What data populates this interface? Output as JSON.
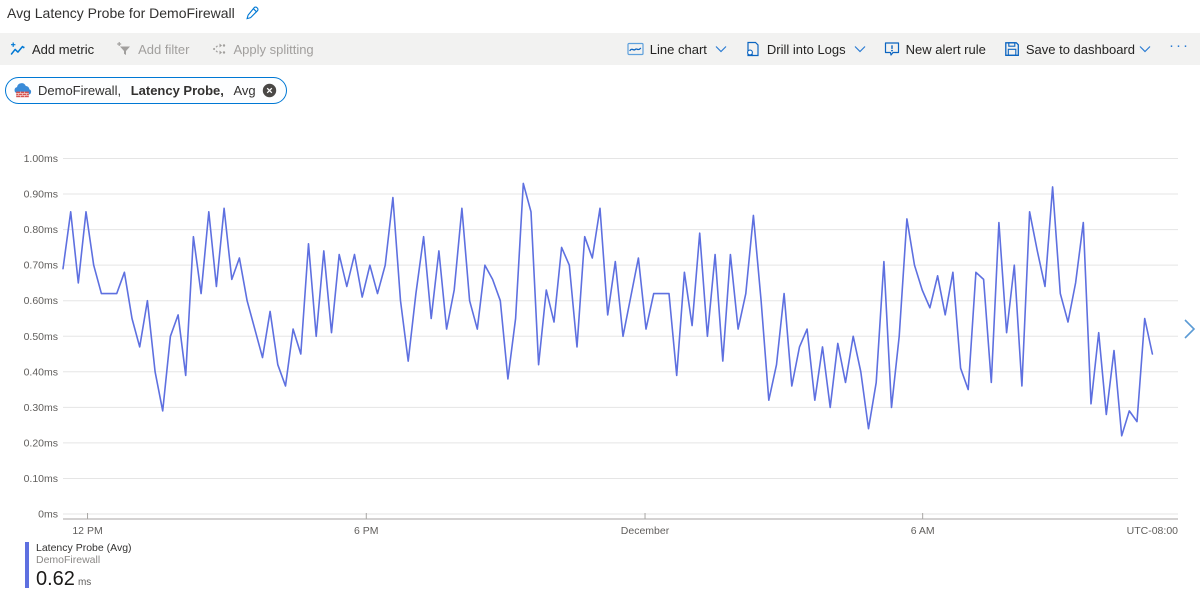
{
  "header": {
    "title": "Avg Latency Probe for DemoFirewall"
  },
  "toolbar": {
    "left": [
      {
        "label": "Add metric",
        "icon": "add-metric-icon",
        "enabled": true
      },
      {
        "label": "Add filter",
        "icon": "add-filter-icon",
        "enabled": false
      },
      {
        "label": "Apply splitting",
        "icon": "apply-splitting-icon",
        "enabled": false
      }
    ],
    "right": [
      {
        "label": "Line chart",
        "icon": "line-chart-icon",
        "has_dropdown": true
      },
      {
        "label": "Drill into Logs",
        "icon": "drill-into-logs-icon",
        "has_dropdown": true
      },
      {
        "label": "New alert rule",
        "icon": "new-alert-rule-icon",
        "has_dropdown": false
      },
      {
        "label": "Save to dashboard",
        "icon": "save-icon",
        "has_dropdown": true
      }
    ],
    "more_label": "···"
  },
  "metric_pill": {
    "resource": "DemoFirewall, ",
    "metric": "Latency Probe, ",
    "aggregation": "Avg",
    "icon": "firewall-icon",
    "close_icon": "close-icon"
  },
  "chart_data": {
    "type": "line",
    "title": "Avg Latency Probe for DemoFirewall",
    "xlabel": "",
    "ylabel": "ms",
    "ylim": [
      0,
      1.0
    ],
    "grid": true,
    "legend_position": "bottom-left",
    "y_ticks": [
      "1.00ms",
      "0.90ms",
      "0.80ms",
      "0.70ms",
      "0.60ms",
      "0.50ms",
      "0.40ms",
      "0.30ms",
      "0.20ms",
      "0.10ms",
      "0ms"
    ],
    "x_ticks": [
      {
        "label": "12 PM",
        "pos": 0.022
      },
      {
        "label": "6 PM",
        "pos": 0.272
      },
      {
        "label": "December",
        "pos": 0.522
      },
      {
        "label": "6 AM",
        "pos": 0.771
      },
      {
        "label": "UTC-08:00",
        "pos": 1.0
      }
    ],
    "x_start_fraction": 0.0,
    "x_end_fraction": 0.977,
    "series": [
      {
        "name": "Latency Probe (Avg)",
        "resource": "DemoFirewall",
        "aggregation": "Avg",
        "unit": "ms",
        "color": "#5e70e0",
        "avg_display": "0.62",
        "values": [
          0.69,
          0.85,
          0.65,
          0.85,
          0.7,
          0.62,
          0.62,
          0.62,
          0.68,
          0.55,
          0.47,
          0.6,
          0.4,
          0.29,
          0.5,
          0.56,
          0.39,
          0.78,
          0.62,
          0.85,
          0.64,
          0.86,
          0.66,
          0.72,
          0.6,
          0.52,
          0.44,
          0.57,
          0.42,
          0.36,
          0.52,
          0.45,
          0.76,
          0.5,
          0.74,
          0.51,
          0.73,
          0.64,
          0.73,
          0.61,
          0.7,
          0.62,
          0.7,
          0.89,
          0.6,
          0.43,
          0.62,
          0.78,
          0.55,
          0.74,
          0.52,
          0.63,
          0.86,
          0.6,
          0.52,
          0.7,
          0.66,
          0.6,
          0.38,
          0.55,
          0.93,
          0.85,
          0.42,
          0.63,
          0.54,
          0.75,
          0.7,
          0.47,
          0.78,
          0.72,
          0.86,
          0.56,
          0.71,
          0.5,
          0.61,
          0.72,
          0.52,
          0.62,
          0.62,
          0.62,
          0.39,
          0.68,
          0.53,
          0.79,
          0.5,
          0.73,
          0.43,
          0.73,
          0.52,
          0.62,
          0.84,
          0.6,
          0.32,
          0.42,
          0.62,
          0.36,
          0.47,
          0.52,
          0.32,
          0.47,
          0.3,
          0.48,
          0.37,
          0.5,
          0.4,
          0.24,
          0.37,
          0.71,
          0.3,
          0.5,
          0.83,
          0.7,
          0.63,
          0.58,
          0.67,
          0.56,
          0.68,
          0.41,
          0.35,
          0.68,
          0.66,
          0.37,
          0.82,
          0.51,
          0.7,
          0.36,
          0.85,
          0.74,
          0.64,
          0.92,
          0.62,
          0.54,
          0.65,
          0.82,
          0.31,
          0.51,
          0.28,
          0.46,
          0.22,
          0.29,
          0.26,
          0.55,
          0.45
        ]
      }
    ]
  },
  "legend": {
    "metric": "Latency Probe (Avg)",
    "resource": "DemoFirewall",
    "value": "0.62",
    "unit": "ms"
  },
  "colors": {
    "accent": "#0078d4",
    "line": "#5e70e0",
    "grid": "#e5e5e5",
    "axis_line": "#a8a6a4",
    "axis_text": "#605e5c",
    "toolbar_bg": "#f2f2f1",
    "disabled_text": "#a19f9d"
  }
}
